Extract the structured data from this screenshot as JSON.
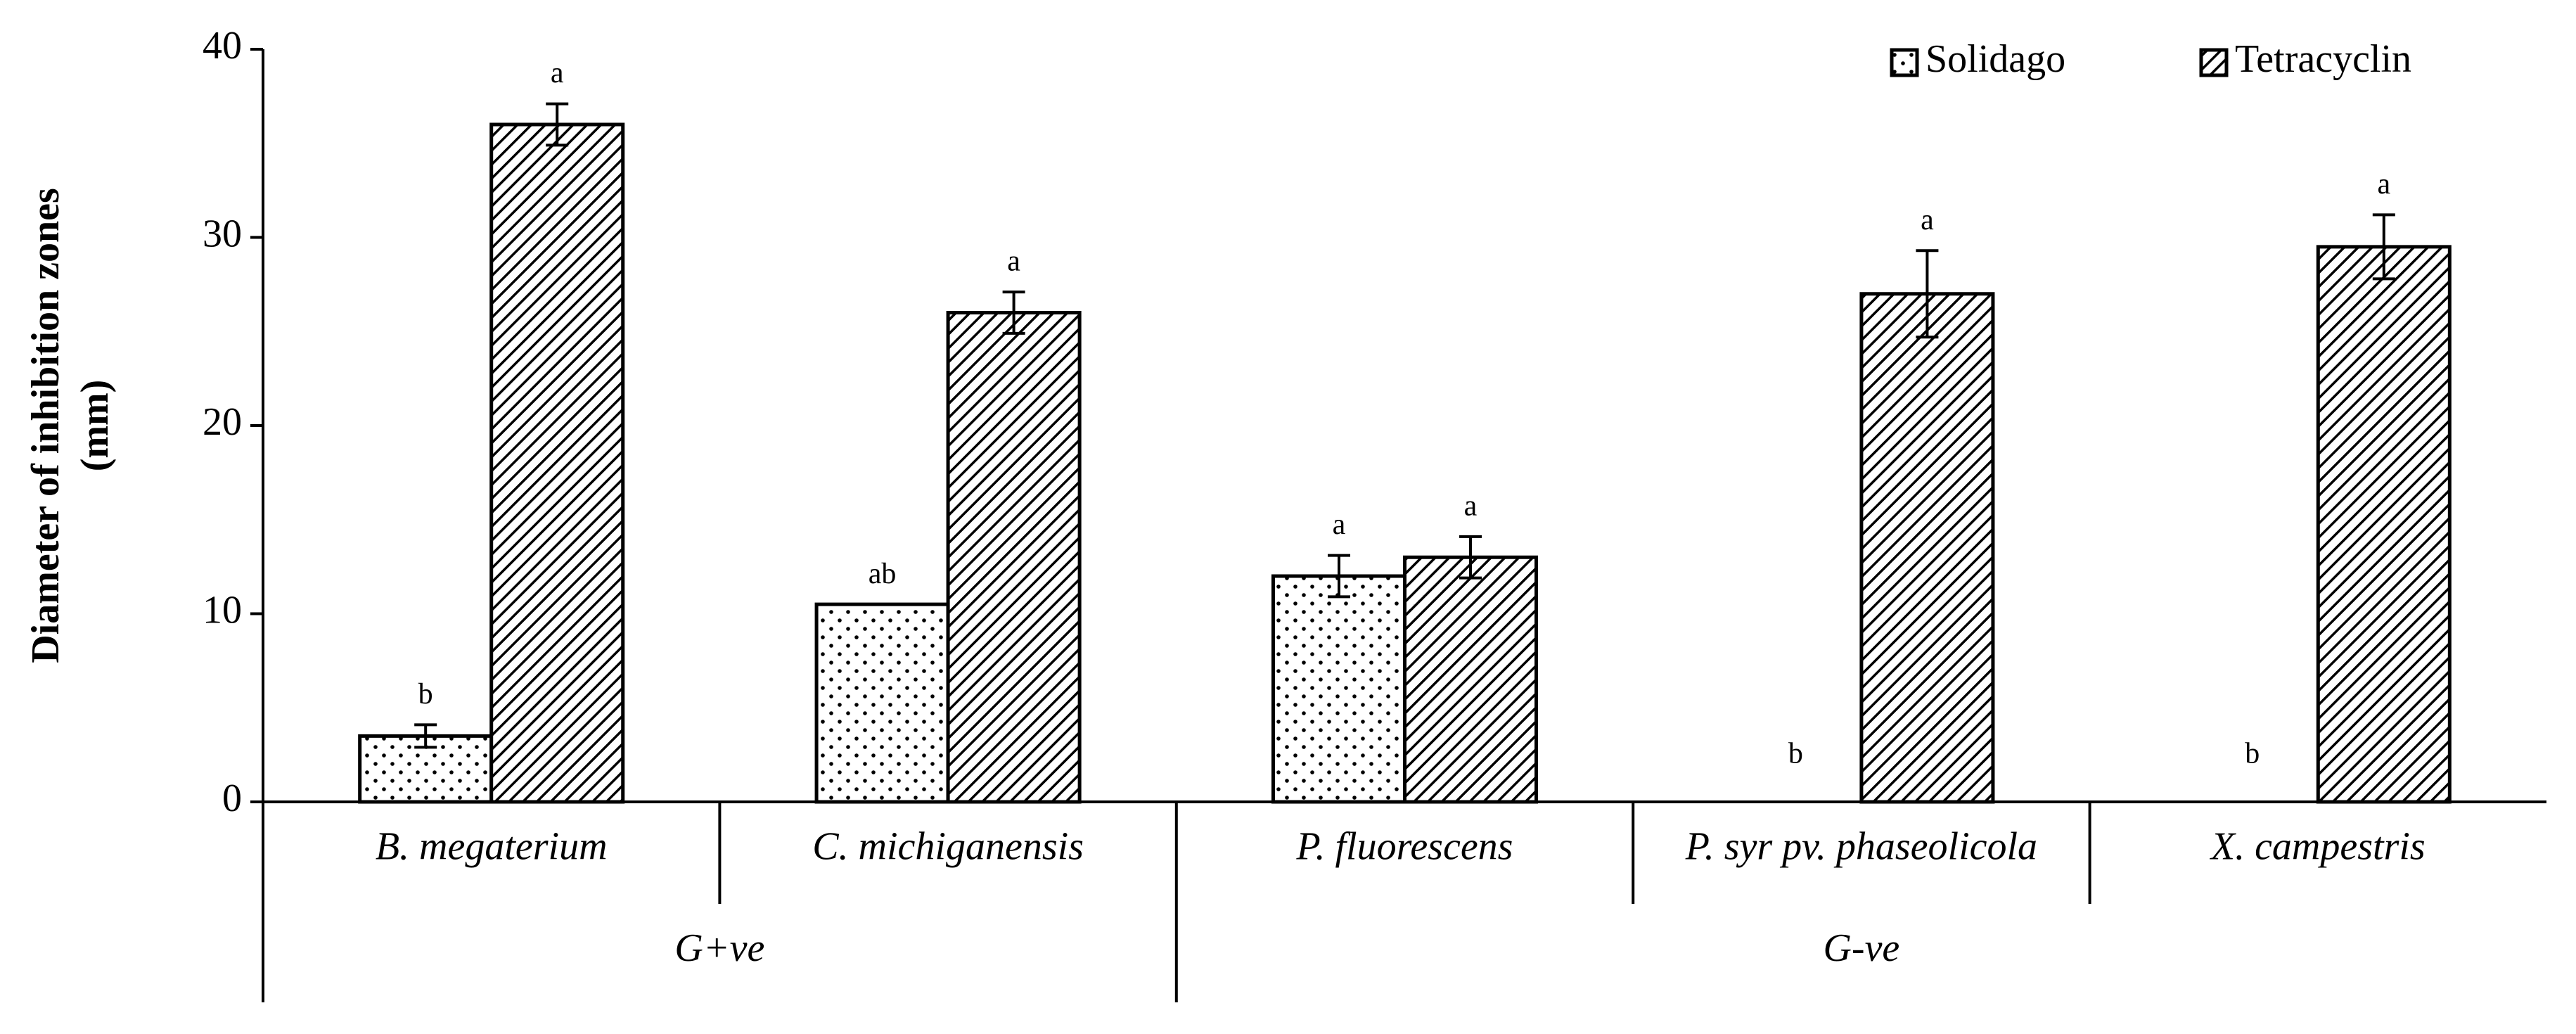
{
  "chart_data": {
    "type": "bar",
    "ylabel": [
      "Diameter of inhibition zones",
      "(mm)"
    ],
    "categories": [
      "B. megaterium",
      "C. michiganensis",
      "P. fluorescens",
      "P. syr pv. phaseolicola",
      "X. campestris"
    ],
    "groups": [
      {
        "name": "G+ve",
        "count": 2
      },
      {
        "name": "G-ve",
        "count": 3
      }
    ],
    "series": [
      {
        "name": "Solidago",
        "color": "#000000",
        "pattern": "dots",
        "values": [
          3.5,
          10.5,
          12,
          0,
          0
        ],
        "errors": [
          0.6,
          null,
          1.1,
          null,
          null
        ],
        "letters": [
          "b",
          "ab",
          "a",
          "b",
          "b"
        ]
      },
      {
        "name": "Tetracyclin",
        "color": "#000000",
        "pattern": "hatch",
        "values": [
          36,
          26,
          13,
          27,
          29.5
        ],
        "errors": [
          1.1,
          1.1,
          1.1,
          2.3,
          1.7
        ],
        "letters": [
          "a",
          "a",
          "a",
          "a",
          "a"
        ]
      }
    ],
    "ylim": [
      0,
      40
    ],
    "yticks": [
      0,
      10,
      20,
      30,
      40
    ],
    "legend": "top-right"
  }
}
